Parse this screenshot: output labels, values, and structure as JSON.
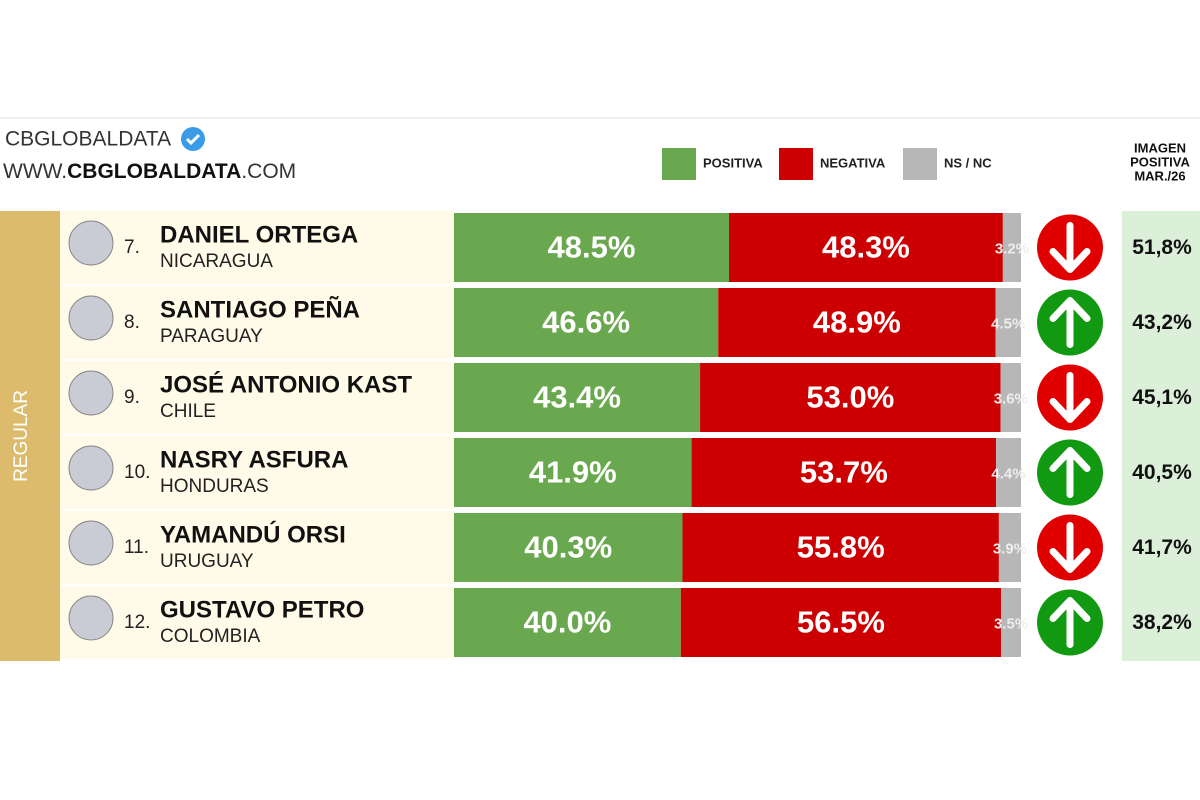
{
  "header": {
    "brand": "CBGLOBALDATA",
    "website_prefix": "WWW.",
    "website_bold": "CBGLOBALDATA",
    "website_suffix": ".COM"
  },
  "chart_data": {
    "type": "stacked-barh",
    "group_label": "REGULAR",
    "ranks": [
      "7.",
      "8.",
      "9.",
      "10.",
      "11.",
      "12."
    ],
    "categories": [
      "DANIEL ORTEGA",
      "SANTIAGO PEÑA",
      "JOSÉ ANTONIO KAST",
      "NASRY ASFURA",
      "YAMANDÚ ORSI",
      "GUSTAVO PETRO"
    ],
    "countries": [
      "NICARAGUA",
      "PARAGUAY",
      "CHILE",
      "HONDURAS",
      "URUGUAY",
      "COLOMBIA"
    ],
    "xlim": [
      0,
      100
    ],
    "series": [
      {
        "name": "POSITIVA",
        "color": "#6aa84f",
        "values": [
          48.5,
          46.6,
          43.4,
          41.9,
          40.3,
          40.0
        ],
        "value_labels": [
          "48.5%",
          "46.6%",
          "43.4%",
          "41.9%",
          "40.3%",
          "40.0%"
        ]
      },
      {
        "name": "NEGATIVA",
        "color": "#cc0000",
        "values": [
          48.3,
          48.9,
          53.0,
          53.7,
          55.8,
          56.5
        ],
        "value_labels": [
          "48.3%",
          "48.9%",
          "53.0%",
          "53.7%",
          "55.8%",
          "56.5%"
        ]
      },
      {
        "name": "NS / NC",
        "color": "#b7b7b7",
        "values": [
          3.2,
          4.5,
          3.6,
          4.4,
          3.9,
          3.5
        ],
        "value_labels": [
          "3.2%",
          "4.5%",
          "3.6%",
          "4.4%",
          "3.9%",
          "3.5%"
        ]
      }
    ],
    "trend": [
      "down",
      "up",
      "down",
      "up",
      "down",
      "up"
    ],
    "trend_colors": {
      "down": "#e00000",
      "up": "#119911"
    },
    "previous": {
      "title": [
        "IMAGEN",
        "POSITIVA",
        "MAR./26"
      ],
      "values": [
        51.8,
        43.2,
        45.1,
        40.5,
        41.7,
        38.2
      ],
      "value_labels": [
        "51,8%",
        "43,2%",
        "45,1%",
        "40,5%",
        "41,7%",
        "38,2%"
      ]
    }
  }
}
